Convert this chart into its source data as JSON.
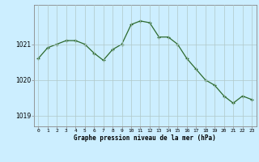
{
  "hours": [
    0,
    1,
    2,
    3,
    4,
    5,
    6,
    7,
    8,
    9,
    10,
    11,
    12,
    13,
    14,
    15,
    16,
    17,
    18,
    19,
    20,
    21,
    22,
    23
  ],
  "pressure": [
    1020.6,
    1020.9,
    1021.0,
    1021.1,
    1021.1,
    1021.0,
    1020.75,
    1020.55,
    1020.85,
    1021.0,
    1021.55,
    1021.65,
    1021.6,
    1021.2,
    1021.2,
    1021.0,
    1020.6,
    1020.3,
    1020.0,
    1019.85,
    1019.55,
    1019.35,
    1019.55,
    1019.45
  ],
  "line_color": "#2d6a2d",
  "marker_color": "#2d6a2d",
  "bg_color": "#cceeff",
  "grid_color": "#b0c8c8",
  "xlabel": "Graphe pression niveau de la mer (hPa)",
  "ylabel_ticks": [
    1019,
    1020,
    1021
  ],
  "xlim": [
    -0.5,
    23.5
  ],
  "ylim": [
    1018.7,
    1022.1
  ],
  "axis_color": "#888888"
}
